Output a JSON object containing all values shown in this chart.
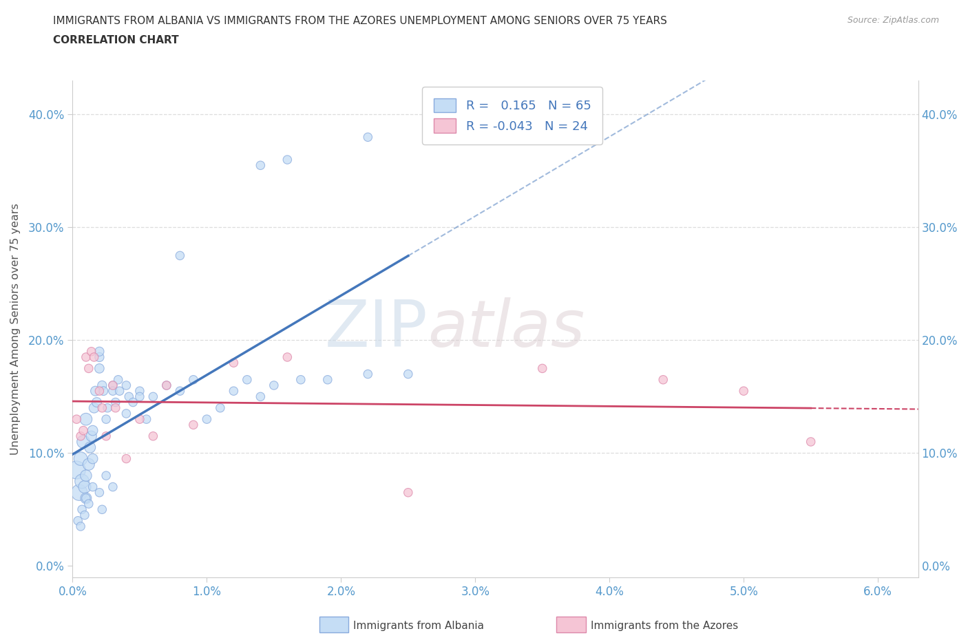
{
  "title_line1": "IMMIGRANTS FROM ALBANIA VS IMMIGRANTS FROM THE AZORES UNEMPLOYMENT AMONG SENIORS OVER 75 YEARS",
  "title_line2": "CORRELATION CHART",
  "source": "Source: ZipAtlas.com",
  "ylabel": "Unemployment Among Seniors over 75 years",
  "xlim": [
    0.0,
    0.063
  ],
  "ylim": [
    -0.01,
    0.43
  ],
  "x_tick_positions": [
    0.0,
    0.01,
    0.02,
    0.03,
    0.04,
    0.05,
    0.06
  ],
  "x_tick_labels": [
    "0.0%",
    "1.0%",
    "2.0%",
    "3.0%",
    "4.0%",
    "5.0%",
    "6.0%"
  ],
  "y_tick_positions": [
    0.0,
    0.1,
    0.2,
    0.3,
    0.4
  ],
  "y_tick_labels": [
    "0.0%",
    "10.0%",
    "20.0%",
    "30.0%",
    "40.0%"
  ],
  "watermark_zip": "ZIP",
  "watermark_atlas": "atlas",
  "legend_R_albania": " 0.165",
  "legend_N_albania": "65",
  "legend_R_azores": "-0.043",
  "legend_N_azores": "24",
  "color_albania_fill": "#c5ddf5",
  "color_albania_edge": "#88aadd",
  "color_azores_fill": "#f5c5d5",
  "color_azores_edge": "#dd88aa",
  "color_albania_line": "#4477bb",
  "color_azores_line": "#cc4466",
  "tick_color": "#5599cc",
  "grid_color": "#dddddd",
  "title_color": "#333333",
  "source_color": "#999999",
  "albania_x": [
    0.0003,
    0.0005,
    0.0006,
    0.0007,
    0.0008,
    0.0009,
    0.001,
    0.001,
    0.001,
    0.0012,
    0.0013,
    0.0014,
    0.0015,
    0.0015,
    0.0016,
    0.0017,
    0.0018,
    0.002,
    0.002,
    0.002,
    0.0022,
    0.0023,
    0.0025,
    0.0026,
    0.003,
    0.003,
    0.0032,
    0.0034,
    0.0035,
    0.004,
    0.004,
    0.0042,
    0.0045,
    0.005,
    0.005,
    0.0055,
    0.006,
    0.007,
    0.008,
    0.009,
    0.01,
    0.011,
    0.012,
    0.013,
    0.014,
    0.015,
    0.017,
    0.019,
    0.022,
    0.025,
    0.0004,
    0.0006,
    0.0007,
    0.0009,
    0.001,
    0.0012,
    0.0015,
    0.002,
    0.0022,
    0.0025,
    0.003,
    0.008,
    0.014,
    0.016,
    0.022
  ],
  "albania_y": [
    0.085,
    0.065,
    0.095,
    0.075,
    0.11,
    0.07,
    0.13,
    0.08,
    0.06,
    0.09,
    0.105,
    0.115,
    0.12,
    0.095,
    0.14,
    0.155,
    0.145,
    0.175,
    0.185,
    0.19,
    0.16,
    0.155,
    0.13,
    0.14,
    0.16,
    0.155,
    0.145,
    0.165,
    0.155,
    0.16,
    0.135,
    0.15,
    0.145,
    0.155,
    0.15,
    0.13,
    0.15,
    0.16,
    0.155,
    0.165,
    0.13,
    0.14,
    0.155,
    0.165,
    0.15,
    0.16,
    0.165,
    0.165,
    0.17,
    0.17,
    0.04,
    0.035,
    0.05,
    0.045,
    0.06,
    0.055,
    0.07,
    0.065,
    0.05,
    0.08,
    0.07,
    0.275,
    0.355,
    0.36,
    0.38
  ],
  "albania_sizes": [
    350,
    280,
    200,
    220,
    180,
    170,
    160,
    140,
    130,
    150,
    130,
    120,
    110,
    110,
    110,
    100,
    100,
    95,
    90,
    90,
    90,
    85,
    80,
    80,
    80,
    80,
    80,
    80,
    80,
    80,
    80,
    80,
    80,
    80,
    80,
    80,
    80,
    80,
    80,
    80,
    80,
    80,
    80,
    80,
    80,
    80,
    80,
    80,
    80,
    80,
    80,
    80,
    80,
    80,
    80,
    80,
    80,
    80,
    80,
    80,
    80,
    80,
    80,
    80,
    80
  ],
  "azores_x": [
    0.0003,
    0.0006,
    0.0008,
    0.001,
    0.0012,
    0.0014,
    0.0016,
    0.002,
    0.0022,
    0.0025,
    0.003,
    0.0032,
    0.004,
    0.005,
    0.006,
    0.007,
    0.009,
    0.012,
    0.016,
    0.025,
    0.035,
    0.044,
    0.05,
    0.055
  ],
  "azores_y": [
    0.13,
    0.115,
    0.12,
    0.185,
    0.175,
    0.19,
    0.185,
    0.155,
    0.14,
    0.115,
    0.16,
    0.14,
    0.095,
    0.13,
    0.115,
    0.16,
    0.125,
    0.18,
    0.185,
    0.065,
    0.175,
    0.165,
    0.155,
    0.11
  ],
  "azores_sizes": [
    80,
    80,
    80,
    80,
    80,
    80,
    80,
    80,
    80,
    80,
    80,
    80,
    80,
    80,
    80,
    80,
    80,
    80,
    80,
    80,
    80,
    80,
    80,
    80
  ]
}
